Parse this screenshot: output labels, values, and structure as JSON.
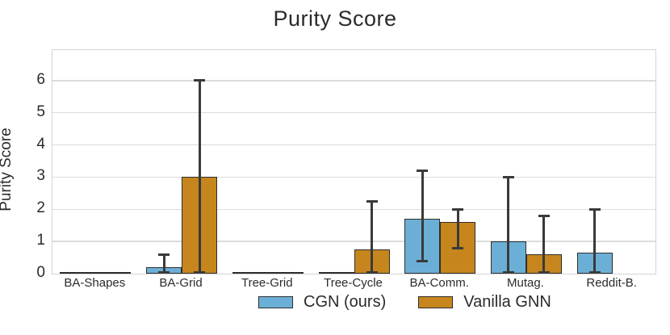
{
  "chart_data": {
    "type": "bar",
    "title": "Purity Score",
    "xlabel": "",
    "ylabel": "Purity Score",
    "categories": [
      "BA-Shapes",
      "BA-Grid",
      "Tree-Grid",
      "Tree-Cycle",
      "BA-Comm.",
      "Mutag.",
      "Reddit-B."
    ],
    "series": [
      {
        "name": "CGN (ours)",
        "color": "#6CAFD6",
        "values": [
          0.02,
          0.2,
          0.02,
          0.02,
          1.7,
          1.0,
          0.65
        ],
        "err_lo": [
          null,
          0,
          null,
          null,
          0.4,
          0,
          0
        ],
        "err_hi": [
          null,
          0.6,
          null,
          null,
          3.2,
          3.0,
          2.0
        ]
      },
      {
        "name": "Vanilla GNN",
        "color": "#C6861D",
        "values": [
          0.02,
          3.0,
          0.02,
          0.75,
          1.6,
          0.6,
          0
        ],
        "err_lo": [
          null,
          0,
          null,
          0,
          0.8,
          0,
          null
        ],
        "err_hi": [
          null,
          6.0,
          null,
          2.25,
          2.0,
          1.8,
          null
        ]
      }
    ],
    "ylim": [
      0,
      6.95
    ],
    "yticks": [
      0,
      1,
      2,
      3,
      4,
      5,
      6
    ],
    "grid": true,
    "legend_position": "bottom",
    "bar_edge_color": "#2e2e2e",
    "error_bar_color": "#3a3a3a",
    "grid_color": "#dcdcdc",
    "text_color": "#2b2b2b"
  }
}
